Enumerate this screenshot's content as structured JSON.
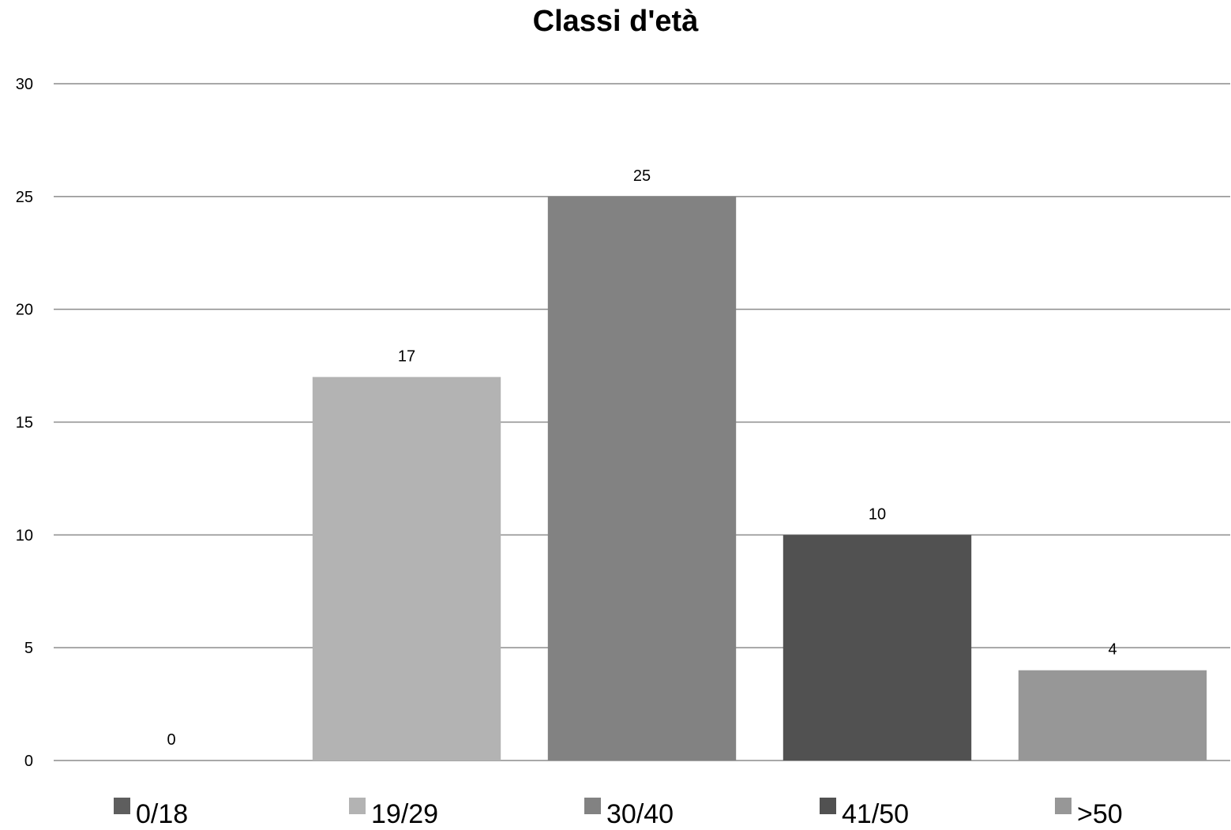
{
  "chart_data": {
    "type": "bar",
    "title": "Classi d'età",
    "xlabel": "",
    "ylabel": "",
    "ylim": [
      0,
      30
    ],
    "yticks": [
      0,
      5,
      10,
      15,
      20,
      25,
      30
    ],
    "grid": true,
    "legend": "bottom",
    "data_labels": true,
    "series": [
      {
        "name": "0/18",
        "value": 0,
        "color": "#5e5e5e"
      },
      {
        "name": "19/29",
        "value": 17,
        "color": "#b3b3b3"
      },
      {
        "name": "30/40",
        "value": 25,
        "color": "#828282"
      },
      {
        "name": "41/50",
        "value": 10,
        "color": "#515151"
      },
      {
        "name": ">50",
        "value": 4,
        "color": "#979797"
      }
    ]
  }
}
